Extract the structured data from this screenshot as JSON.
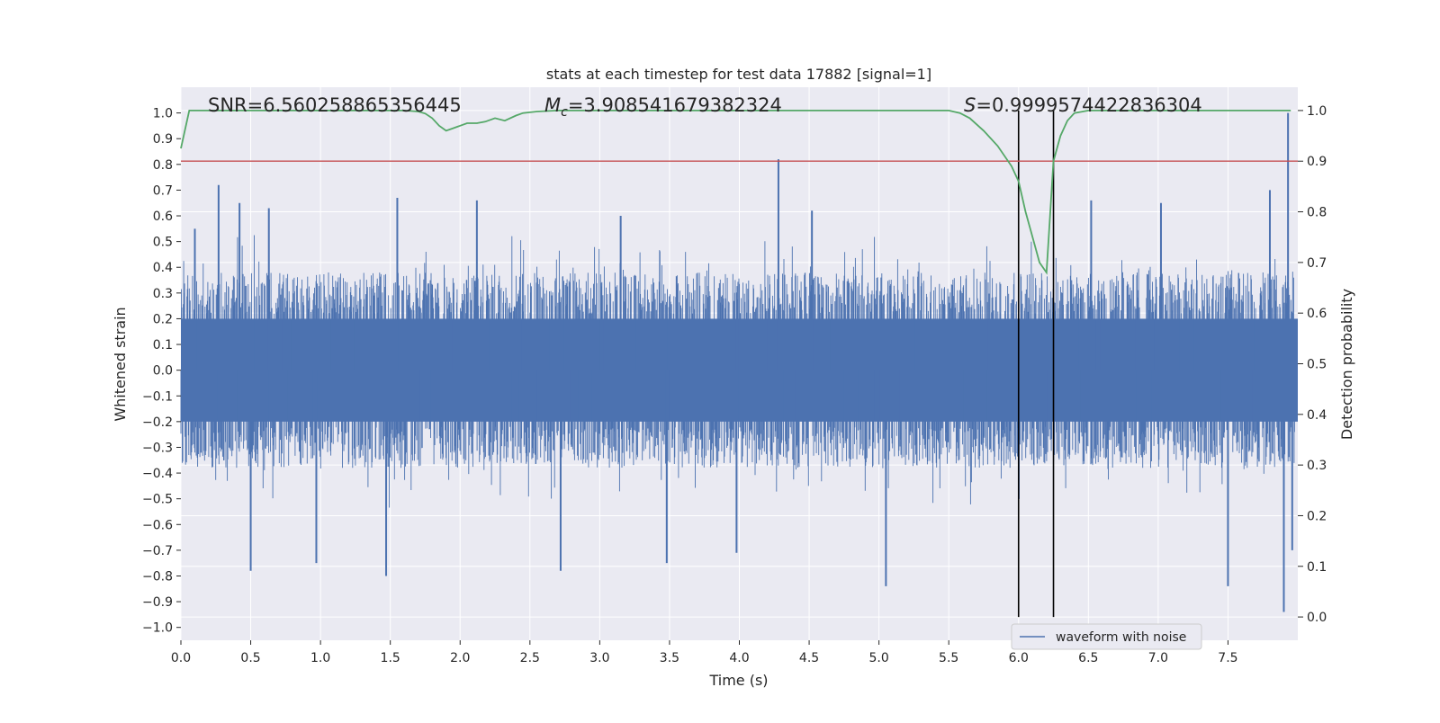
{
  "chart_data": {
    "type": "line",
    "title": "stats at each timestep for test data 17882 [signal=1]",
    "xlabel": "Time (s)",
    "ylabel": "Whitened strain",
    "y2label": "Detection probability",
    "xlim": [
      0.0,
      8.0
    ],
    "ylim": [
      -1.05,
      1.1
    ],
    "y2lim": [
      -0.046,
      1.046
    ],
    "x_ticks": [
      "0.0",
      "0.5",
      "1.0",
      "1.5",
      "2.0",
      "2.5",
      "3.0",
      "3.5",
      "4.0",
      "4.5",
      "5.0",
      "5.5",
      "6.0",
      "6.5",
      "7.0",
      "7.5"
    ],
    "y_ticks": [
      "1.0",
      "0.9",
      "0.8",
      "0.7",
      "0.6",
      "0.5",
      "0.4",
      "0.3",
      "0.2",
      "0.1",
      "0.0",
      "-0.1",
      "-0.2",
      "-0.3",
      "-0.4",
      "-0.5",
      "-0.6",
      "-0.7",
      "-0.8",
      "-0.9",
      "-1.0"
    ],
    "y2_ticks": [
      "1.0",
      "0.9",
      "0.8",
      "0.7",
      "0.6",
      "0.5",
      "0.4",
      "0.3",
      "0.2",
      "0.1",
      "0.0"
    ],
    "annotations": {
      "snr": "SNR=6.560258865356445",
      "mc_symbol": "M",
      "mc_sub": "c",
      "mc_value": "=3.908541679382324",
      "s_symbol": "S",
      "s_value": "=0.9999574422836304"
    },
    "threshold": {
      "value": 0.9,
      "axis": "detection probability",
      "color": "#c44e52"
    },
    "markers": [
      6.0,
      6.25
    ],
    "legend": {
      "label": "waveform with noise",
      "location": "lower right"
    },
    "series": [
      {
        "name": "waveform with noise",
        "color": "#4c72b0",
        "axis": "Whitened strain",
        "style": "dense noise, roughly ±0.3 core amplitude with spikes",
        "spikes": [
          {
            "x": 0.1,
            "v": 0.55
          },
          {
            "x": 0.27,
            "v": 0.72
          },
          {
            "x": 0.42,
            "v": 0.65
          },
          {
            "x": 0.5,
            "v": -0.78
          },
          {
            "x": 0.63,
            "v": 0.63
          },
          {
            "x": 0.97,
            "v": -0.75
          },
          {
            "x": 1.47,
            "v": -0.8
          },
          {
            "x": 1.55,
            "v": 0.67
          },
          {
            "x": 2.12,
            "v": 0.66
          },
          {
            "x": 2.72,
            "v": -0.78
          },
          {
            "x": 3.15,
            "v": 0.6
          },
          {
            "x": 3.48,
            "v": -0.75
          },
          {
            "x": 3.98,
            "v": -0.71
          },
          {
            "x": 4.28,
            "v": 0.82
          },
          {
            "x": 4.52,
            "v": 0.62
          },
          {
            "x": 5.05,
            "v": -0.84
          },
          {
            "x": 6.52,
            "v": 0.66
          },
          {
            "x": 7.02,
            "v": 0.65
          },
          {
            "x": 7.5,
            "v": -0.84
          },
          {
            "x": 7.8,
            "v": 0.7
          },
          {
            "x": 7.9,
            "v": -0.94
          },
          {
            "x": 7.93,
            "v": 1.0
          },
          {
            "x": 7.96,
            "v": -0.7
          }
        ]
      },
      {
        "name": "detection probability",
        "color": "#55a868",
        "axis": "Detection probability",
        "x": [
          0.0,
          0.06,
          0.5,
          1.0,
          1.5,
          1.6,
          1.7,
          1.75,
          1.8,
          1.85,
          1.9,
          1.95,
          2.0,
          2.05,
          2.12,
          2.18,
          2.25,
          2.32,
          2.4,
          2.45,
          2.55,
          2.7,
          3.0,
          3.5,
          4.0,
          4.5,
          5.0,
          5.4,
          5.5,
          5.58,
          5.65,
          5.75,
          5.85,
          5.95,
          6.0,
          6.05,
          6.1,
          6.15,
          6.2,
          6.25,
          6.3,
          6.35,
          6.4,
          6.5,
          6.6,
          7.0,
          7.5,
          7.95
        ],
        "y": [
          0.925,
          1.0,
          1.0,
          1.0,
          1.0,
          1.0,
          0.998,
          0.994,
          0.985,
          0.97,
          0.96,
          0.965,
          0.97,
          0.975,
          0.975,
          0.978,
          0.985,
          0.98,
          0.99,
          0.995,
          0.998,
          1.0,
          1.0,
          1.0,
          1.0,
          1.0,
          1.0,
          1.0,
          1.0,
          0.995,
          0.985,
          0.96,
          0.93,
          0.89,
          0.86,
          0.8,
          0.75,
          0.7,
          0.68,
          0.9,
          0.95,
          0.98,
          0.995,
          1.0,
          1.0,
          1.0,
          1.0,
          1.0
        ]
      }
    ]
  }
}
